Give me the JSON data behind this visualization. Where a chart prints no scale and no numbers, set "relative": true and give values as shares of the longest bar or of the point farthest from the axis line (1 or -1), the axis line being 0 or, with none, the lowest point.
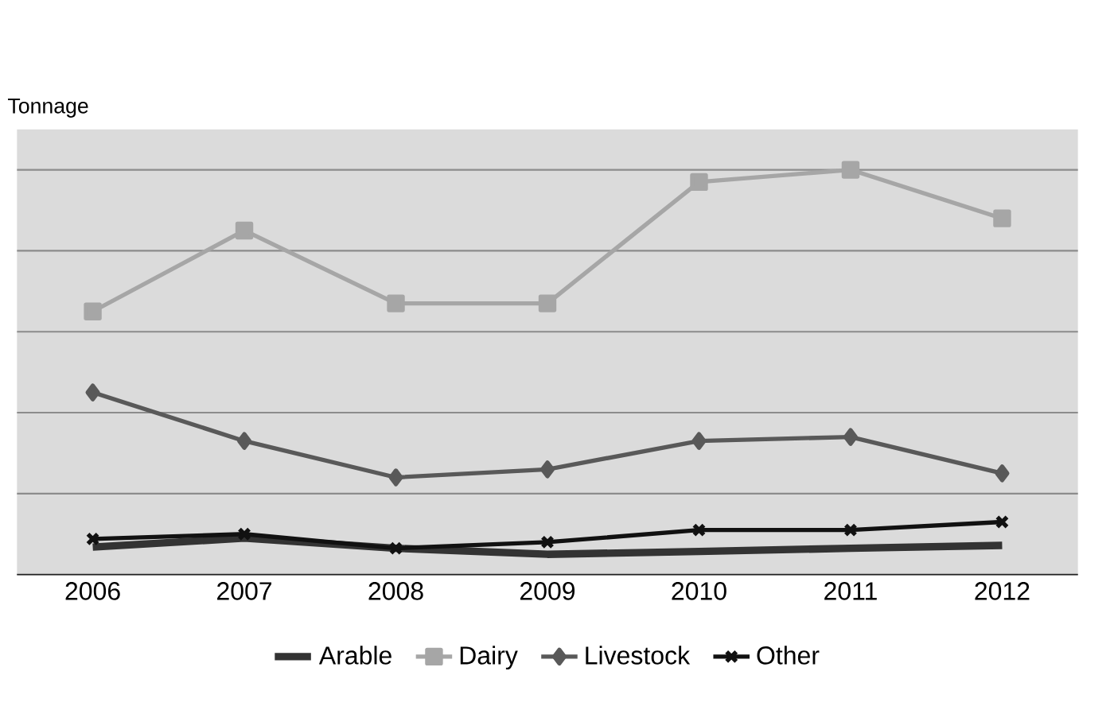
{
  "chart_data": {
    "type": "line",
    "ylabel": "Tonnage",
    "relative": true,
    "grid": "y",
    "legend": "bottom",
    "categories": [
      "2006",
      "2007",
      "2008",
      "2009",
      "2010",
      "2011",
      "2012"
    ],
    "series": [
      {
        "name": "Arable",
        "color": "#333333",
        "marker": "none",
        "values": [
          0.068,
          0.09,
          0.065,
          0.05,
          0.057,
          0.065,
          0.072
        ]
      },
      {
        "name": "Dairy",
        "color": "#a6a6a6",
        "marker": "square",
        "values": [
          0.65,
          0.85,
          0.67,
          0.67,
          0.97,
          1,
          0.88
        ]
      },
      {
        "name": "Livestock",
        "color": "#595959",
        "marker": "diamond",
        "values": [
          0.45,
          0.33,
          0.24,
          0.26,
          0.33,
          0.34,
          0.25
        ]
      },
      {
        "name": "Other",
        "color": "#111111",
        "marker": "cross",
        "values": [
          0.088,
          0.1,
          0.065,
          0.08,
          0.11,
          0.11,
          0.13
        ]
      }
    ]
  }
}
